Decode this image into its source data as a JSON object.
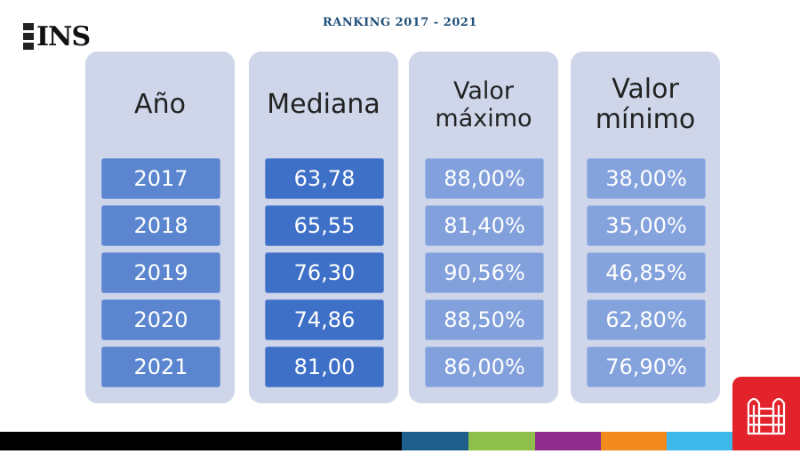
{
  "header": {
    "logo_text": "INS",
    "title": "RANKING 2017 - 2021"
  },
  "columns": [
    {
      "label": "Año",
      "values": [
        "2017",
        "2018",
        "2019",
        "2020",
        "2021"
      ]
    },
    {
      "label": "Mediana",
      "values": [
        "63,78",
        "65,55",
        "76,30",
        "74,86",
        "81,00"
      ]
    },
    {
      "label_line1": "Valor",
      "label_line2": "máximo",
      "values": [
        "88,00%",
        "81,40%",
        "90,56%",
        "88,50%",
        "86,00%"
      ]
    },
    {
      "label_line1": "Valor",
      "label_line2": "mínimo",
      "values": [
        "38,00%",
        "35,00%",
        "46,85%",
        "62,80%",
        "76,90%"
      ]
    }
  ],
  "colors": {
    "title": "#1f4e79",
    "panel": "#cfd6ea",
    "year_cell": "#5b86cf",
    "median_cell": "#3f70c8",
    "max_cell": "#82a0db",
    "min_cell": "#84a2dc",
    "badge": "#e3232b",
    "stripe": [
      "#000000",
      "#1f5f8b",
      "#8dbf4a",
      "#8e2c8e",
      "#f28a1e",
      "#3fb9ea"
    ]
  }
}
